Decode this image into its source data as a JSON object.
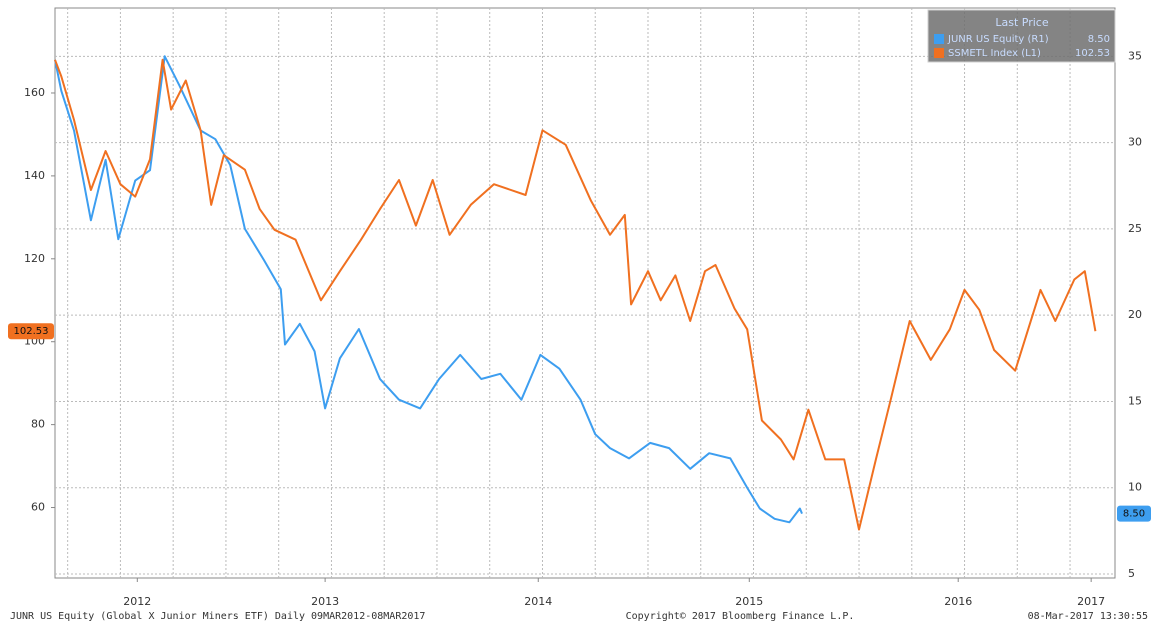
{
  "chart_data": {
    "type": "line",
    "legend_title": "Last Price",
    "legend": "upper right",
    "grid": true,
    "footer_left": "JUNR US Equity (Global X Junior Miners ETF)  Daily 09MAR2012-08MAR2017",
    "footer_center": "Copyright© 2017 Bloomberg Finance L.P.",
    "footer_right": "08-Mar-2017 13:30:55",
    "xlim": [
      2012.19,
      2017.213
    ],
    "xticks": [
      {
        "value": 2012.58,
        "label": "2012"
      },
      {
        "value": 2013.47,
        "label": "2013"
      },
      {
        "value": 2014.48,
        "label": "2014"
      },
      {
        "value": 2015.48,
        "label": "2015"
      },
      {
        "value": 2016.47,
        "label": "2016"
      },
      {
        "value": 2017.1,
        "label": "2017"
      }
    ],
    "xgrid": [
      2012.25,
      2012.5,
      2012.75,
      2013.0,
      2013.25,
      2013.5,
      2013.75,
      2014.0,
      2014.25,
      2014.5,
      2014.75,
      2015.0,
      2015.25,
      2015.5,
      2015.75,
      2016.0,
      2016.25,
      2016.5,
      2016.75,
      2017.0
    ],
    "ylim": [
      43,
      180.5
    ],
    "yticks": [
      60,
      80,
      100,
      120,
      140,
      160
    ],
    "y2lim": [
      4.77,
      37.8
    ],
    "y2ticks": [
      5,
      10,
      15,
      20,
      25,
      30,
      35
    ],
    "series": [
      {
        "name": "JUNR US Equity  (R1)",
        "color": "#3d9ef0",
        "axis": "y2",
        "last_label": "8.50",
        "x": [
          2012.19,
          2012.22,
          2012.28,
          2012.36,
          2012.43,
          2012.49,
          2012.57,
          2012.64,
          2012.71,
          2012.78,
          2012.88,
          2012.95,
          2013.02,
          2013.09,
          2013.18,
          2013.26,
          2013.28,
          2013.35,
          2013.42,
          2013.47,
          2013.54,
          2013.63,
          2013.73,
          2013.82,
          2013.92,
          2014.01,
          2014.11,
          2014.21,
          2014.3,
          2014.4,
          2014.49,
          2014.58,
          2014.68,
          2014.75,
          2014.82,
          2014.91,
          2015.01,
          2015.1,
          2015.2,
          2015.29,
          2015.39,
          2015.47,
          2015.53,
          2015.6,
          2015.67,
          2015.72,
          2015.73
        ],
        "values": [
          34.8,
          33.0,
          30.7,
          25.5,
          29.0,
          24.4,
          27.8,
          28.4,
          35.0,
          33.3,
          30.7,
          30.2,
          28.7,
          25.0,
          23.2,
          21.5,
          18.3,
          19.5,
          17.9,
          14.6,
          17.5,
          19.2,
          16.3,
          15.1,
          14.6,
          16.3,
          17.7,
          16.3,
          16.6,
          15.1,
          17.7,
          16.9,
          15.1,
          13.1,
          12.3,
          11.7,
          12.6,
          12.3,
          11.1,
          12.0,
          11.7,
          10.0,
          8.8,
          8.2,
          8.0,
          8.8,
          8.5
        ]
      },
      {
        "name": "SSMETL Index  (L1)",
        "color": "#f07020",
        "axis": "y",
        "last_label": "102.53",
        "x": [
          2012.19,
          2012.22,
          2012.28,
          2012.36,
          2012.43,
          2012.5,
          2012.57,
          2012.64,
          2012.7,
          2012.74,
          2012.81,
          2012.88,
          2012.93,
          2012.99,
          2013.09,
          2013.16,
          2013.23,
          2013.33,
          2013.45,
          2013.54,
          2013.64,
          2013.73,
          2013.82,
          2013.9,
          2013.98,
          2014.06,
          2014.16,
          2014.27,
          2014.42,
          2014.5,
          2014.61,
          2014.73,
          2014.82,
          2014.89,
          2014.92,
          2015.0,
          2015.06,
          2015.13,
          2015.2,
          2015.27,
          2015.32,
          2015.41,
          2015.47,
          2015.54,
          2015.63,
          2015.69,
          2015.76,
          2015.84,
          2015.93,
          2016.0,
          2016.08,
          2016.15,
          2016.24,
          2016.34,
          2016.43,
          2016.5,
          2016.57,
          2016.64,
          2016.74,
          2016.86,
          2016.93,
          2017.02,
          2017.07,
          2017.12
        ],
        "values": [
          168,
          164,
          153.5,
          136.6,
          146,
          138,
          135,
          144,
          168,
          156,
          163,
          151,
          133,
          145,
          141.5,
          132,
          127,
          124.6,
          110,
          117,
          124.6,
          132,
          139,
          128,
          139,
          125.8,
          133,
          138,
          135.4,
          151,
          147.5,
          134,
          125.8,
          130.6,
          109,
          117,
          110,
          116,
          105,
          117,
          118.5,
          108,
          103,
          81,
          76.4,
          71.6,
          83.6,
          71.6,
          71.6,
          54.7,
          71.6,
          86,
          105,
          95.6,
          103,
          112.5,
          107.7,
          98,
          93,
          112.5,
          105,
          115,
          117,
          102.53
        ]
      }
    ]
  }
}
